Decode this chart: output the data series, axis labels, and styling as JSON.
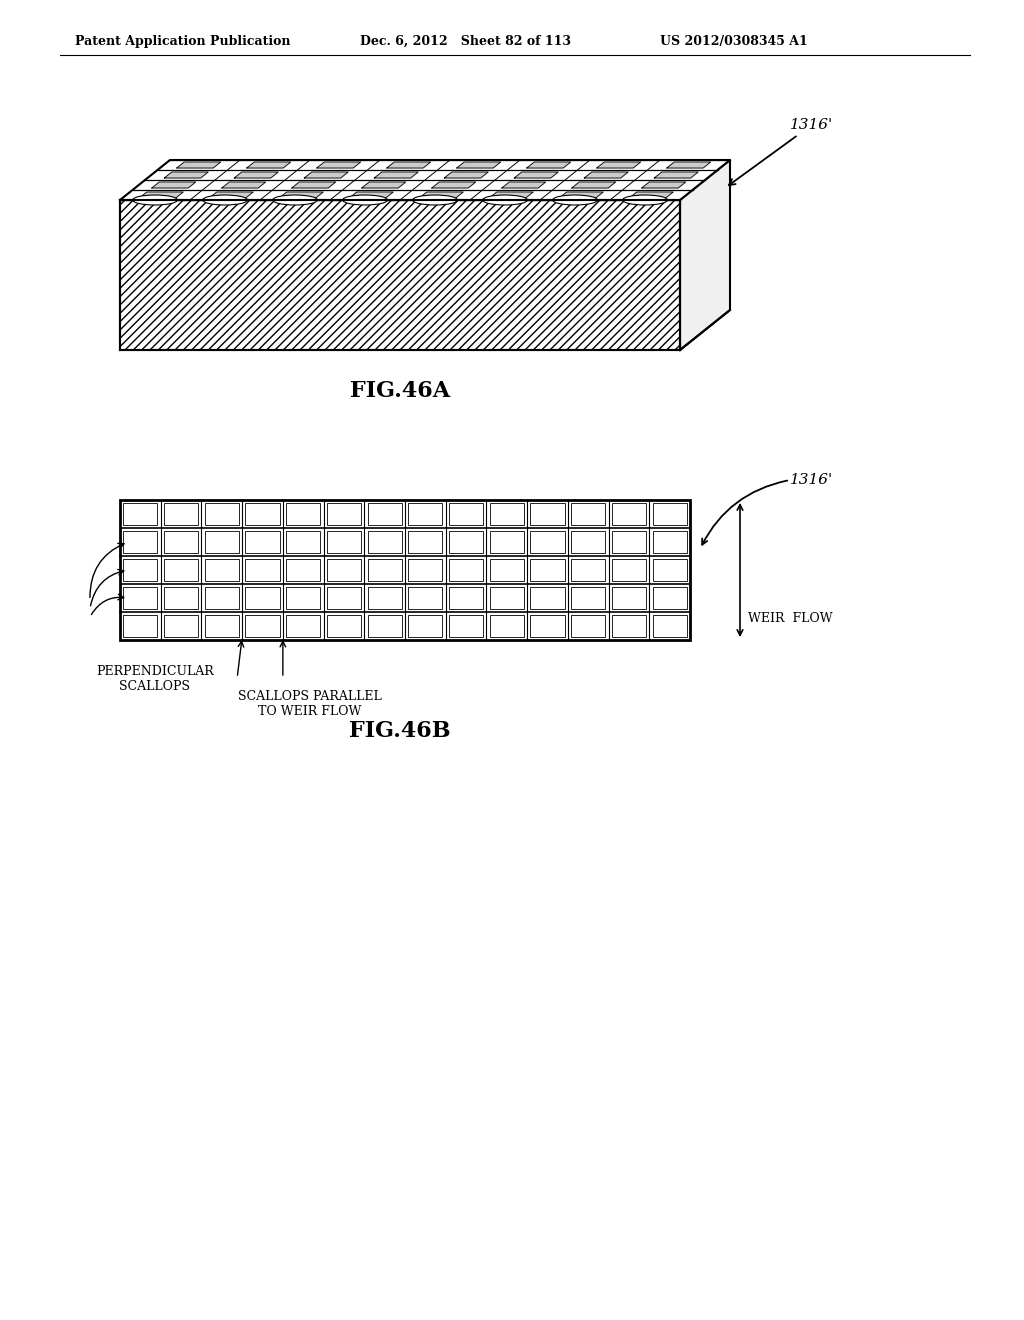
{
  "header_left": "Patent Application Publication",
  "header_mid": "Dec. 6, 2012   Sheet 82 of 113",
  "header_right": "US 2012/0308345 A1",
  "fig_a_label": "FIG.46A",
  "fig_b_label": "FIG.46B",
  "label_1316_a": "1316'",
  "label_1316_b": "1316'",
  "label_weir_flow": "WEIR  FLOW",
  "label_perp": "PERPENDICULAR\nSCALLOPS",
  "label_parallel": "SCALLOPS PARALLEL\nTO WEIR FLOW",
  "bg_color": "#ffffff",
  "line_color": "#000000"
}
